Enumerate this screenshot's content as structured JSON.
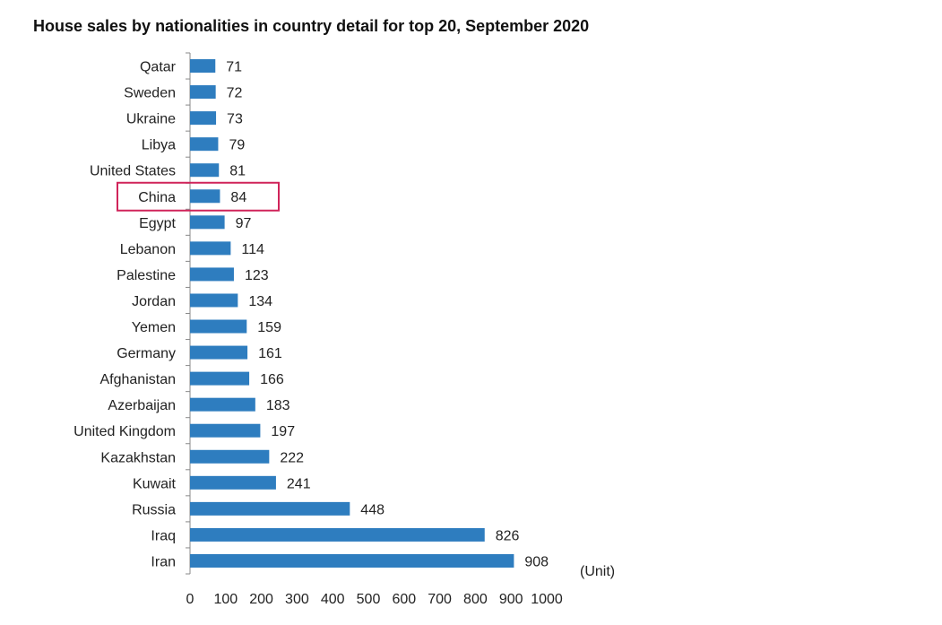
{
  "title": "House sales by nationalities in country detail for top 20, September 2020",
  "chart_data": {
    "type": "bar",
    "orientation": "horizontal",
    "title": "House sales by nationalities in country detail for top 20, September 2020",
    "categories": [
      "Qatar",
      "Sweden",
      "Ukraine",
      "Libya",
      "United States",
      "China",
      "Egypt",
      "Lebanon",
      "Palestine",
      "Jordan",
      "Yemen",
      "Germany",
      "Afghanistan",
      "Azerbaijan",
      "United Kingdom",
      "Kazakhstan",
      "Kuwait",
      "Russia",
      "Iraq",
      "Iran"
    ],
    "values": [
      71,
      72,
      73,
      79,
      81,
      84,
      97,
      114,
      123,
      134,
      159,
      161,
      166,
      183,
      197,
      222,
      241,
      448,
      826,
      908
    ],
    "xlim": [
      0,
      1000
    ],
    "x_ticks": [
      "0",
      "100",
      "200",
      "300",
      "400",
      "500",
      "600",
      "700",
      "800",
      "900",
      "1000"
    ],
    "unit_label": "(Unit)",
    "highlighted_category": "China",
    "bar_color": "#2e7dbf",
    "highlight_color": "#d0245a",
    "grid": false
  }
}
